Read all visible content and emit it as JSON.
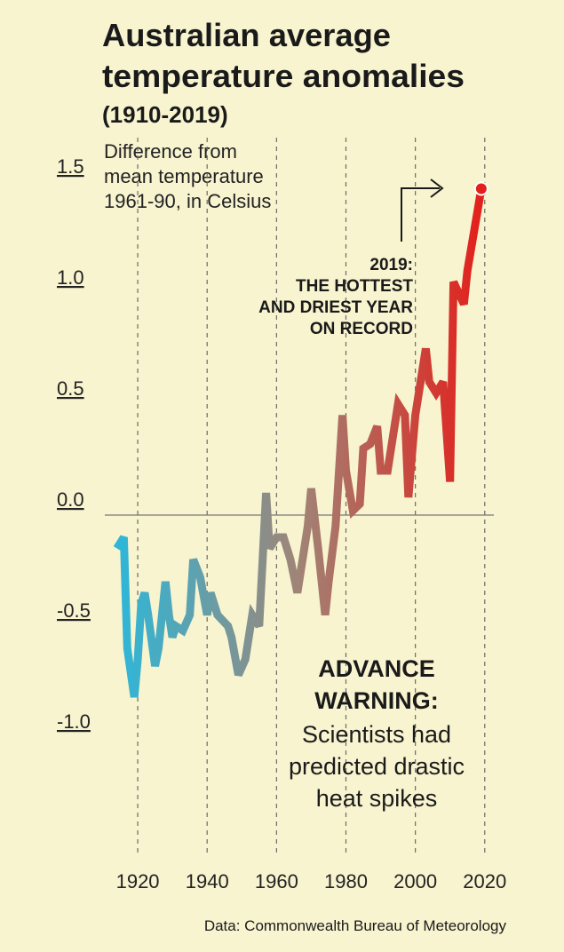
{
  "chart_data": {
    "type": "line",
    "title": [
      "Australian average",
      "temperature anomalies"
    ],
    "subtitle": "(1910-2019)",
    "y_label": [
      "Difference from",
      "mean temperature",
      "1961-90, in Celsius"
    ],
    "annotations": {
      "record": [
        "2019:",
        "THE HOTTEST",
        "AND DRIEST YEAR",
        "ON RECORD"
      ],
      "warning_heading": [
        "ADVANCE",
        "WARNING:"
      ],
      "warning_body": [
        "Scientists had",
        "predicted drastic",
        "heat spikes"
      ]
    },
    "source": "Data: Commonwealth Bureau of Meteorology",
    "x": [
      1914,
      1916,
      1917,
      1919,
      1920,
      1921,
      1922,
      1923,
      1925,
      1926,
      1928,
      1929,
      1930,
      1931,
      1933,
      1935,
      1936,
      1938,
      1940,
      1941,
      1943,
      1946,
      1947,
      1949,
      1951,
      1953,
      1955,
      1957,
      1958,
      1960,
      1962,
      1964,
      1966,
      1969,
      1970,
      1972,
      1974,
      1975,
      1977,
      1979,
      1980,
      1982,
      1984,
      1985,
      1987,
      1989,
      1990,
      1992,
      1995,
      1997,
      1998,
      2000,
      2003,
      2004,
      2006,
      2008,
      2010,
      2011,
      2014,
      2015,
      2019
    ],
    "values": [
      -0.15,
      -0.1,
      -0.6,
      -0.82,
      -0.65,
      -0.4,
      -0.35,
      -0.45,
      -0.68,
      -0.6,
      -0.3,
      -0.45,
      -0.55,
      -0.5,
      -0.52,
      -0.45,
      -0.2,
      -0.28,
      -0.45,
      -0.35,
      -0.45,
      -0.5,
      -0.55,
      -0.72,
      -0.65,
      -0.45,
      -0.5,
      0.1,
      -0.15,
      -0.1,
      -0.1,
      -0.2,
      -0.35,
      -0.05,
      0.12,
      -0.15,
      -0.45,
      -0.3,
      -0.05,
      0.45,
      0.2,
      0.02,
      0.05,
      0.3,
      0.32,
      0.4,
      0.2,
      0.2,
      0.5,
      0.45,
      0.08,
      0.45,
      0.75,
      0.6,
      0.55,
      0.6,
      0.15,
      1.05,
      0.95,
      1.1,
      1.47
    ],
    "colors": [
      "#2eb7d9",
      "#a08476",
      "#e3201b"
    ],
    "xlim": [
      1910,
      2023
    ],
    "ylim": [
      -1.0,
      1.5
    ],
    "xticks": [
      1920,
      1940,
      1960,
      1980,
      2000,
      2020
    ],
    "yticks": [
      {
        "value": 1.5,
        "label": "1.5"
      },
      {
        "value": 1.0,
        "label": "1.0"
      },
      0.5,
      {
        "value": 0.0,
        "label": "0.0"
      },
      -0.5,
      {
        "value": -1.0,
        "label": "-1.0"
      }
    ],
    "grid": true
  }
}
